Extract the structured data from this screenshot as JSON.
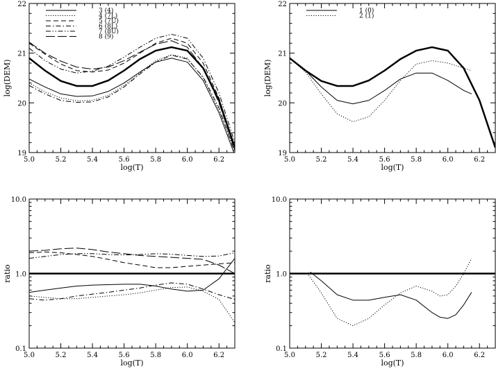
{
  "chart_data": [
    {
      "type": "line",
      "xlabel": "log(T)",
      "ylabel": "log(DEM)",
      "xlim": [
        5.0,
        6.3
      ],
      "ylim": [
        19,
        22
      ],
      "xticks": [
        "5.0",
        "5.2",
        "5.4",
        "5.6",
        "5.8",
        "6.0",
        "6.2"
      ],
      "yticks": [
        "19",
        "20",
        "21",
        "22"
      ],
      "legend": "top-left",
      "series": [
        {
          "name": "3 (4)",
          "style": "solid",
          "width": 1,
          "x": [
            5.0,
            5.1,
            5.2,
            5.3,
            5.4,
            5.5,
            5.6,
            5.7,
            5.8,
            5.9,
            6.0,
            6.1,
            6.2,
            6.3
          ],
          "y": [
            20.48,
            20.32,
            20.18,
            20.13,
            20.14,
            20.23,
            20.4,
            20.62,
            20.82,
            20.9,
            20.82,
            20.45,
            19.8,
            18.95
          ]
        },
        {
          "name": "4 (7L)",
          "style": "dotted",
          "width": 1,
          "x": [
            5.0,
            5.1,
            5.2,
            5.3,
            5.4,
            5.5,
            5.6,
            5.7,
            5.8,
            5.9,
            6.0,
            6.1,
            6.2,
            6.3
          ],
          "y": [
            20.4,
            20.22,
            20.1,
            20.04,
            20.05,
            20.15,
            20.35,
            20.6,
            20.85,
            20.97,
            20.9,
            20.5,
            19.85,
            19.05
          ]
        },
        {
          "name": "5 (7U)",
          "style": "dashed",
          "width": 1,
          "x": [
            5.0,
            5.1,
            5.2,
            5.3,
            5.4,
            5.5,
            5.6,
            5.7,
            5.8,
            5.9,
            6.0,
            6.1,
            6.2,
            6.3
          ],
          "y": [
            21.2,
            20.98,
            20.78,
            20.65,
            20.62,
            20.66,
            20.8,
            21.0,
            21.2,
            21.3,
            21.2,
            20.8,
            20.1,
            19.1
          ]
        },
        {
          "name": "6 (8L)",
          "style": "dashdot",
          "width": 1,
          "x": [
            5.0,
            5.1,
            5.2,
            5.3,
            5.4,
            5.5,
            5.6,
            5.7,
            5.8,
            5.9,
            6.0,
            6.1,
            6.2,
            6.3
          ],
          "y": [
            20.35,
            20.18,
            20.05,
            20.01,
            20.02,
            20.12,
            20.32,
            20.58,
            20.82,
            20.96,
            20.88,
            20.52,
            19.9,
            19.0
          ]
        },
        {
          "name": "7 (8U)",
          "style": "dashdotdot",
          "width": 1,
          "x": [
            5.0,
            5.1,
            5.2,
            5.3,
            5.4,
            5.5,
            5.6,
            5.7,
            5.8,
            5.9,
            6.0,
            6.1,
            6.2,
            6.3
          ],
          "y": [
            21.1,
            20.85,
            20.68,
            20.6,
            20.64,
            20.74,
            20.92,
            21.12,
            21.3,
            21.38,
            21.3,
            20.9,
            20.2,
            19.2
          ]
        },
        {
          "name": "8 (9)",
          "style": "longdash",
          "width": 1,
          "x": [
            5.0,
            5.1,
            5.2,
            5.3,
            5.4,
            5.5,
            5.6,
            5.7,
            5.8,
            5.9,
            6.0,
            6.1,
            6.2,
            6.3
          ],
          "y": [
            21.22,
            21.0,
            20.84,
            20.72,
            20.68,
            20.72,
            20.85,
            21.02,
            21.18,
            21.25,
            21.12,
            20.7,
            20.0,
            19.05
          ]
        },
        {
          "name": "",
          "style": "solid",
          "width": 2.5,
          "x": [
            5.0,
            5.1,
            5.2,
            5.3,
            5.4,
            5.5,
            5.6,
            5.7,
            5.8,
            5.9,
            6.0,
            6.1,
            6.2,
            6.3
          ],
          "y": [
            20.9,
            20.65,
            20.44,
            20.34,
            20.34,
            20.45,
            20.65,
            20.88,
            21.05,
            21.12,
            21.05,
            20.7,
            20.05,
            19.1
          ]
        }
      ]
    },
    {
      "type": "line",
      "xlabel": "log(T)",
      "ylabel": "log(DEM)",
      "xlim": [
        5.0,
        6.3
      ],
      "ylim": [
        19,
        22
      ],
      "xticks": [
        "5.0",
        "5.2",
        "5.4",
        "5.6",
        "5.8",
        "6.0",
        "6.2"
      ],
      "yticks": [
        "19",
        "20",
        "21",
        "22"
      ],
      "legend": "top-left",
      "series": [
        {
          "name": "1 (0)",
          "style": "solid",
          "width": 1,
          "x": [
            5.0,
            5.1,
            5.2,
            5.3,
            5.4,
            5.5,
            5.6,
            5.7,
            5.8,
            5.9,
            6.0,
            6.1,
            6.15
          ],
          "y": [
            20.9,
            20.65,
            20.32,
            20.05,
            19.98,
            20.05,
            20.25,
            20.48,
            20.6,
            20.6,
            20.45,
            20.25,
            20.18
          ]
        },
        {
          "name": "2 (1)",
          "style": "dotted",
          "width": 1,
          "x": [
            5.0,
            5.1,
            5.2,
            5.3,
            5.4,
            5.5,
            5.6,
            5.7,
            5.8,
            5.9,
            6.0,
            6.1,
            6.15
          ],
          "y": [
            20.9,
            20.62,
            20.18,
            19.78,
            19.62,
            19.72,
            20.05,
            20.45,
            20.78,
            20.85,
            20.8,
            20.7,
            20.65
          ]
        },
        {
          "name": "",
          "style": "solid",
          "width": 2.5,
          "x": [
            5.0,
            5.1,
            5.2,
            5.3,
            5.4,
            5.5,
            5.6,
            5.7,
            5.8,
            5.9,
            6.0,
            6.1,
            6.2,
            6.3
          ],
          "y": [
            20.9,
            20.65,
            20.44,
            20.34,
            20.34,
            20.45,
            20.65,
            20.88,
            21.05,
            21.12,
            21.05,
            20.7,
            20.05,
            19.1
          ]
        }
      ]
    },
    {
      "type": "line",
      "xlabel": "log(T)",
      "ylabel": "ratio",
      "xlim": [
        5.0,
        6.3
      ],
      "ylim": [
        0.1,
        10
      ],
      "yscale": "log",
      "xticks": [
        "5.0",
        "5.2",
        "5.4",
        "5.6",
        "5.8",
        "6.0",
        "6.2"
      ],
      "yticks": [
        "0.1",
        "1.0",
        "10.0"
      ],
      "series": [
        {
          "name": "",
          "style": "solid",
          "width": 1,
          "x": [
            5.0,
            5.1,
            5.2,
            5.3,
            5.4,
            5.5,
            5.6,
            5.7,
            5.8,
            5.9,
            6.0,
            6.1,
            6.2,
            6.3
          ],
          "y": [
            0.56,
            0.6,
            0.64,
            0.68,
            0.7,
            0.71,
            0.72,
            0.72,
            0.68,
            0.62,
            0.58,
            0.6,
            0.85,
            1.6
          ]
        },
        {
          "name": "",
          "style": "dotted",
          "width": 1,
          "x": [
            5.0,
            5.1,
            5.2,
            5.3,
            5.4,
            5.5,
            5.6,
            5.7,
            5.8,
            5.9,
            6.0,
            6.1,
            6.2,
            6.3
          ],
          "y": [
            0.5,
            0.48,
            0.46,
            0.46,
            0.48,
            0.5,
            0.52,
            0.55,
            0.6,
            0.65,
            0.66,
            0.58,
            0.45,
            0.22
          ]
        },
        {
          "name": "",
          "style": "dashed",
          "width": 1,
          "x": [
            5.0,
            5.1,
            5.2,
            5.3,
            5.4,
            5.5,
            5.6,
            5.7,
            5.8,
            5.9,
            6.0,
            6.1,
            6.2,
            6.3
          ],
          "y": [
            1.9,
            1.95,
            1.9,
            1.8,
            1.7,
            1.55,
            1.4,
            1.3,
            1.2,
            1.2,
            1.25,
            1.3,
            1.35,
            1.4
          ]
        },
        {
          "name": "",
          "style": "dashdot",
          "width": 1,
          "x": [
            5.0,
            5.1,
            5.2,
            5.3,
            5.4,
            5.5,
            5.6,
            5.7,
            5.8,
            5.9,
            6.0,
            6.1,
            6.2,
            6.3
          ],
          "y": [
            0.46,
            0.44,
            0.46,
            0.5,
            0.53,
            0.56,
            0.6,
            0.64,
            0.7,
            0.75,
            0.72,
            0.62,
            0.52,
            0.45
          ]
        },
        {
          "name": "",
          "style": "dashdotdot",
          "width": 1,
          "x": [
            5.0,
            5.1,
            5.2,
            5.3,
            5.4,
            5.5,
            5.6,
            5.7,
            5.8,
            5.9,
            6.0,
            6.1,
            6.2,
            6.3
          ],
          "y": [
            1.6,
            1.7,
            1.8,
            1.85,
            1.85,
            1.8,
            1.78,
            1.8,
            1.85,
            1.82,
            1.75,
            1.7,
            1.72,
            1.9
          ]
        },
        {
          "name": "",
          "style": "longdash",
          "width": 1,
          "x": [
            5.0,
            5.1,
            5.2,
            5.3,
            5.4,
            5.5,
            5.6,
            5.7,
            5.8,
            5.9,
            6.0,
            6.1,
            6.2,
            6.3
          ],
          "y": [
            2.0,
            2.05,
            2.15,
            2.2,
            2.1,
            1.95,
            1.85,
            1.75,
            1.7,
            1.65,
            1.6,
            1.55,
            1.3,
            1.0
          ]
        },
        {
          "name": "",
          "style": "solid",
          "width": 2.5,
          "x": [
            5.0,
            6.3
          ],
          "y": [
            1.0,
            1.0
          ]
        }
      ]
    },
    {
      "type": "line",
      "xlabel": "log(T)",
      "ylabel": "ratio",
      "xlim": [
        5.0,
        6.3
      ],
      "ylim": [
        0.1,
        10
      ],
      "yscale": "log",
      "xticks": [
        "5.0",
        "5.2",
        "5.4",
        "5.6",
        "5.8",
        "6.0",
        "6.2"
      ],
      "yticks": [
        "0.1",
        "1.0",
        "10.0"
      ],
      "series": [
        {
          "name": "",
          "style": "solid",
          "width": 1,
          "x": [
            5.13,
            5.2,
            5.3,
            5.4,
            5.5,
            5.6,
            5.7,
            5.8,
            5.9,
            5.95,
            6.0,
            6.05,
            6.1,
            6.15
          ],
          "y": [
            1.05,
            0.8,
            0.52,
            0.44,
            0.44,
            0.48,
            0.52,
            0.44,
            0.3,
            0.26,
            0.25,
            0.28,
            0.38,
            0.56
          ]
        },
        {
          "name": "",
          "style": "dotted",
          "width": 1,
          "x": [
            5.12,
            5.2,
            5.3,
            5.4,
            5.5,
            5.6,
            5.7,
            5.8,
            5.9,
            5.95,
            6.0,
            6.05,
            6.1,
            6.15
          ],
          "y": [
            0.95,
            0.55,
            0.25,
            0.2,
            0.25,
            0.38,
            0.55,
            0.68,
            0.58,
            0.5,
            0.52,
            0.68,
            1.0,
            1.6
          ]
        },
        {
          "name": "",
          "style": "solid",
          "width": 2.5,
          "x": [
            5.0,
            6.3
          ],
          "y": [
            1.0,
            1.0
          ]
        }
      ]
    }
  ]
}
